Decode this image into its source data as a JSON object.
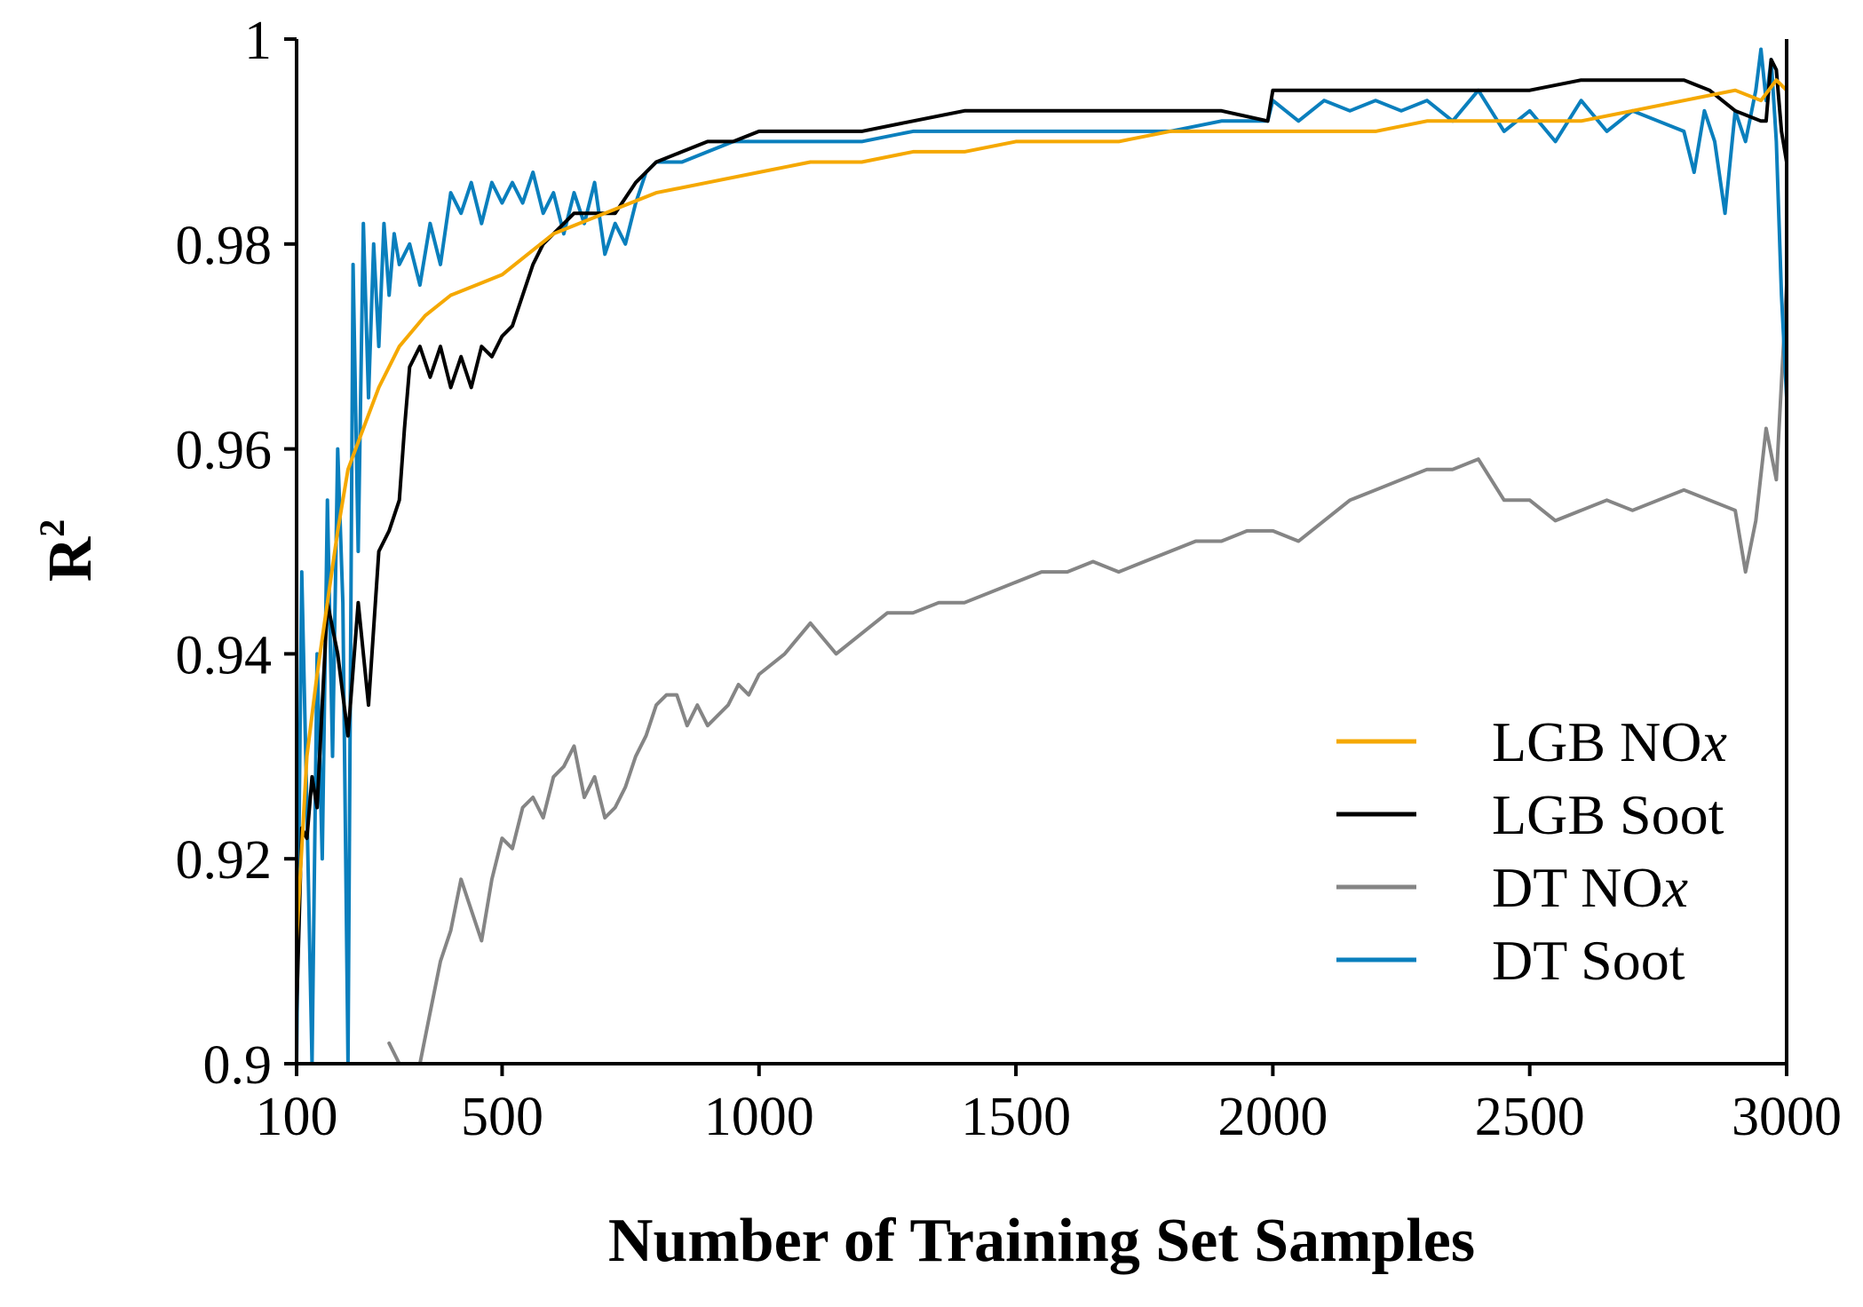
{
  "chart_data": {
    "type": "line",
    "title": "",
    "xlabel": "Number of Training Set Samples",
    "ylabel": "R",
    "ylabel_superscript": "2",
    "xlim": [
      100,
      3000
    ],
    "ylim": [
      0.9,
      1.0
    ],
    "x_ticks": [
      100,
      500,
      1000,
      1500,
      2000,
      2500,
      3000
    ],
    "x_tick_labels": [
      "100",
      "500",
      "1000",
      "1500",
      "2000",
      "2500",
      "3000"
    ],
    "y_ticks": [
      0.9,
      0.92,
      0.94,
      0.96,
      0.98,
      1.0
    ],
    "y_tick_labels": [
      "0.9",
      "0.92",
      "0.94",
      "0.96",
      "0.98",
      "1"
    ],
    "grid": false,
    "legend_position": "bottom-right",
    "series": [
      {
        "name": "LGB NOx",
        "legend_base": "LGB NO",
        "legend_italic": "x",
        "color": "#f5a800",
        "x": [
          100,
          120,
          140,
          160,
          180,
          200,
          230,
          260,
          300,
          350,
          400,
          450,
          500,
          550,
          600,
          650,
          700,
          750,
          800,
          900,
          1000,
          1100,
          1200,
          1300,
          1400,
          1500,
          1600,
          1700,
          1800,
          1900,
          2000,
          2100,
          2200,
          2300,
          2400,
          2500,
          2600,
          2700,
          2800,
          2900,
          2950,
          2980,
          3000
        ],
        "y": [
          0.912,
          0.93,
          0.938,
          0.945,
          0.952,
          0.958,
          0.962,
          0.966,
          0.97,
          0.973,
          0.975,
          0.976,
          0.977,
          0.979,
          0.981,
          0.982,
          0.983,
          0.984,
          0.985,
          0.986,
          0.987,
          0.988,
          0.988,
          0.989,
          0.989,
          0.99,
          0.99,
          0.99,
          0.991,
          0.991,
          0.991,
          0.991,
          0.991,
          0.992,
          0.992,
          0.992,
          0.992,
          0.993,
          0.994,
          0.995,
          0.994,
          0.996,
          0.995
        ]
      },
      {
        "name": "LGB Soot",
        "legend_base": "LGB Soot",
        "legend_italic": "",
        "color": "#000000",
        "x": [
          100,
          110,
          120,
          130,
          140,
          160,
          180,
          200,
          220,
          240,
          260,
          280,
          300,
          310,
          320,
          340,
          360,
          380,
          400,
          420,
          440,
          460,
          480,
          500,
          520,
          540,
          560,
          580,
          600,
          640,
          680,
          720,
          760,
          780,
          800,
          850,
          900,
          950,
          1000,
          1100,
          1200,
          1300,
          1400,
          1500,
          1600,
          1700,
          1800,
          1900,
          1990,
          2000,
          2100,
          2200,
          2300,
          2400,
          2500,
          2600,
          2650,
          2700,
          2800,
          2850,
          2900,
          2950,
          2960,
          2970,
          2980,
          2990,
          3000
        ],
        "y": [
          0.905,
          0.923,
          0.922,
          0.928,
          0.925,
          0.945,
          0.94,
          0.932,
          0.945,
          0.935,
          0.95,
          0.952,
          0.955,
          0.962,
          0.968,
          0.97,
          0.967,
          0.97,
          0.966,
          0.969,
          0.966,
          0.97,
          0.969,
          0.971,
          0.972,
          0.975,
          0.978,
          0.98,
          0.981,
          0.983,
          0.983,
          0.983,
          0.986,
          0.987,
          0.988,
          0.989,
          0.99,
          0.99,
          0.991,
          0.991,
          0.991,
          0.992,
          0.993,
          0.993,
          0.993,
          0.993,
          0.993,
          0.993,
          0.992,
          0.995,
          0.995,
          0.995,
          0.995,
          0.995,
          0.995,
          0.996,
          0.996,
          0.996,
          0.996,
          0.995,
          0.993,
          0.992,
          0.992,
          0.998,
          0.997,
          0.991,
          0.988
        ]
      },
      {
        "name": "DT NOx",
        "legend_base": "DT NO",
        "legend_italic": "x",
        "color": "#858585",
        "x": [
          280,
          300,
          320,
          340,
          360,
          380,
          400,
          420,
          440,
          460,
          480,
          500,
          520,
          540,
          560,
          580,
          600,
          620,
          640,
          660,
          680,
          700,
          720,
          740,
          760,
          780,
          800,
          820,
          840,
          860,
          880,
          900,
          920,
          940,
          960,
          980,
          1000,
          1050,
          1100,
          1150,
          1200,
          1250,
          1300,
          1350,
          1400,
          1450,
          1500,
          1550,
          1600,
          1650,
          1700,
          1750,
          1800,
          1850,
          1900,
          1950,
          2000,
          2050,
          2100,
          2150,
          2200,
          2250,
          2300,
          2350,
          2400,
          2450,
          2500,
          2550,
          2600,
          2650,
          2700,
          2750,
          2800,
          2850,
          2900,
          2920,
          2940,
          2960,
          2980,
          3000
        ],
        "y": [
          0.902,
          0.898,
          0.896,
          0.899,
          0.905,
          0.91,
          0.913,
          0.918,
          0.915,
          0.912,
          0.918,
          0.922,
          0.921,
          0.925,
          0.926,
          0.924,
          0.928,
          0.929,
          0.931,
          0.926,
          0.928,
          0.924,
          0.925,
          0.927,
          0.93,
          0.932,
          0.935,
          0.936,
          0.936,
          0.933,
          0.935,
          0.933,
          0.934,
          0.935,
          0.937,
          0.936,
          0.938,
          0.94,
          0.943,
          0.94,
          0.942,
          0.944,
          0.944,
          0.945,
          0.945,
          0.946,
          0.947,
          0.948,
          0.948,
          0.949,
          0.948,
          0.949,
          0.95,
          0.951,
          0.951,
          0.952,
          0.952,
          0.951,
          0.953,
          0.955,
          0.956,
          0.957,
          0.958,
          0.958,
          0.959,
          0.955,
          0.955,
          0.953,
          0.954,
          0.955,
          0.954,
          0.955,
          0.956,
          0.955,
          0.954,
          0.948,
          0.953,
          0.962,
          0.957,
          0.976
        ]
      },
      {
        "name": "DT Soot",
        "legend_base": "DT Soot",
        "legend_italic": "",
        "color": "#0a7fbd",
        "x": [
          100,
          110,
          120,
          130,
          140,
          150,
          160,
          170,
          180,
          190,
          200,
          210,
          220,
          230,
          240,
          250,
          260,
          270,
          280,
          290,
          300,
          320,
          340,
          360,
          380,
          400,
          420,
          440,
          460,
          480,
          500,
          520,
          540,
          560,
          580,
          600,
          620,
          640,
          660,
          680,
          700,
          720,
          740,
          760,
          780,
          800,
          850,
          900,
          950,
          1000,
          1100,
          1200,
          1300,
          1400,
          1500,
          1600,
          1700,
          1800,
          1900,
          1990,
          2000,
          2050,
          2100,
          2150,
          2200,
          2250,
          2300,
          2350,
          2400,
          2450,
          2500,
          2550,
          2600,
          2650,
          2700,
          2750,
          2800,
          2820,
          2840,
          2860,
          2880,
          2900,
          2920,
          2940,
          2950,
          2960,
          2970,
          2980,
          2990,
          3000
        ],
        "y": [
          0.9,
          0.948,
          0.925,
          0.9,
          0.94,
          0.92,
          0.955,
          0.93,
          0.96,
          0.945,
          0.9,
          0.978,
          0.95,
          0.982,
          0.965,
          0.98,
          0.97,
          0.982,
          0.975,
          0.981,
          0.978,
          0.98,
          0.976,
          0.982,
          0.978,
          0.985,
          0.983,
          0.986,
          0.982,
          0.986,
          0.984,
          0.986,
          0.984,
          0.987,
          0.983,
          0.985,
          0.981,
          0.985,
          0.982,
          0.986,
          0.979,
          0.982,
          0.98,
          0.984,
          0.987,
          0.988,
          0.988,
          0.989,
          0.99,
          0.99,
          0.99,
          0.99,
          0.991,
          0.991,
          0.991,
          0.991,
          0.991,
          0.991,
          0.992,
          0.992,
          0.994,
          0.992,
          0.994,
          0.993,
          0.994,
          0.993,
          0.994,
          0.992,
          0.995,
          0.991,
          0.993,
          0.99,
          0.994,
          0.991,
          0.993,
          0.992,
          0.991,
          0.987,
          0.993,
          0.99,
          0.983,
          0.993,
          0.99,
          0.995,
          0.999,
          0.994,
          0.998,
          0.99,
          0.975,
          0.965
        ]
      }
    ]
  }
}
